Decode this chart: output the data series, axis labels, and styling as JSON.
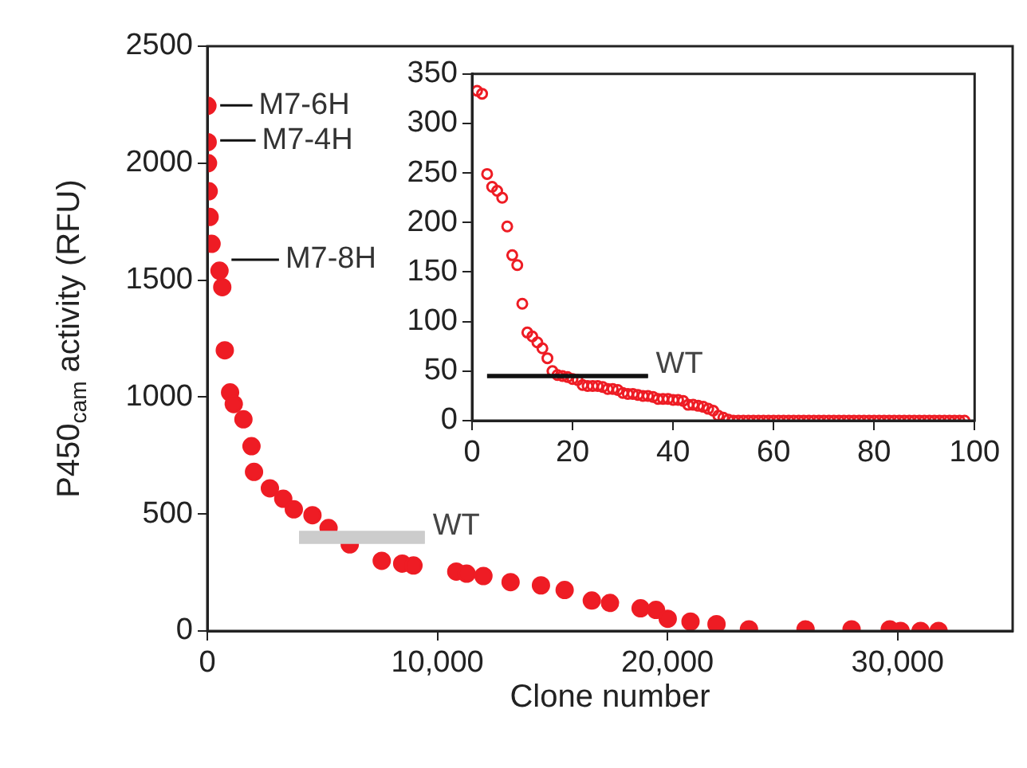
{
  "chart_data": [
    {
      "type": "scatter",
      "xlabel": "Clone number",
      "ylabel": "P450$_{cam}$ activity (RFU)",
      "marker": "circle",
      "x": [
        5,
        15,
        30,
        60,
        100,
        185,
        530,
        650,
        760,
        990,
        1150,
        1570,
        1920,
        2030,
        2720,
        3300,
        3760,
        4570,
        5270,
        6190,
        7580,
        8470,
        8960,
        10820,
        11270,
        12000,
        13180,
        14500,
        15530,
        16710,
        17500,
        18830,
        19500,
        20010,
        21000,
        22130,
        23540,
        26000,
        28000,
        29660,
        30130,
        31000,
        31780
      ],
      "series": [
        {
          "color": "#ee1c24",
          "values": [
            2245,
            2090,
            2000,
            1880,
            1770,
            1655,
            1540,
            1470,
            1200,
            1020,
            970,
            905,
            790,
            680,
            610,
            565,
            520,
            495,
            440,
            370,
            300,
            288,
            280,
            254,
            245,
            235,
            209,
            195,
            175,
            130,
            120,
            97,
            90,
            52,
            40,
            29,
            7,
            7,
            7,
            7,
            0,
            0,
            0
          ]
        }
      ],
      "xlim": [
        0,
        35000
      ],
      "xticks": [
        0,
        {
          "value": 10000,
          "label": "10,000"
        },
        {
          "value": 20000,
          "label": "20,000"
        },
        {
          "value": 30000,
          "label": "30,000"
        }
      ],
      "ylim": [
        0,
        2500
      ],
      "yticks": [
        0,
        500,
        1000,
        1500,
        2000,
        2500
      ],
      "annotations": [
        "M7-6H",
        "M7-4H",
        "M7-8H"
      ],
      "ref_lines": [
        {
          "axis": "y",
          "value": 400,
          "label": "WT",
          "color": "#cccccc"
        }
      ]
    },
    {
      "type": "scatter",
      "marker": "circle",
      "x": [
        1,
        2,
        3,
        4,
        5,
        6,
        7,
        8,
        9,
        10,
        11,
        12,
        13,
        14,
        15,
        16,
        17,
        18,
        19,
        20,
        21,
        22,
        23,
        24,
        25,
        26,
        27,
        28,
        29,
        30,
        31,
        32,
        33,
        34,
        35,
        36,
        37,
        38,
        39,
        40,
        41,
        42,
        43,
        44,
        45,
        46,
        47,
        48,
        49,
        50,
        51,
        52,
        53,
        54,
        55,
        56,
        57,
        58,
        59,
        60,
        61,
        62,
        63,
        64,
        65,
        66,
        67,
        68,
        69,
        70,
        71,
        72,
        73,
        74,
        75,
        76,
        77,
        78,
        79,
        80,
        81,
        82,
        83,
        84,
        85,
        86,
        87,
        88,
        89,
        90,
        91,
        92,
        93,
        94,
        95,
        96,
        97,
        98
      ],
      "series": [
        {
          "color": "#ee1c24",
          "values": [
            333,
            330,
            249,
            236,
            232,
            225,
            196,
            167,
            157,
            118,
            89,
            85,
            79,
            73,
            63,
            50,
            46,
            45,
            44,
            42,
            41,
            36,
            35,
            35,
            35,
            34,
            32,
            32,
            31,
            28,
            27,
            27,
            26,
            25,
            25,
            24,
            22,
            22,
            22,
            21,
            21,
            20,
            16,
            16,
            15,
            14,
            12,
            10,
            5,
            3,
            1,
            0,
            0,
            0,
            0,
            0,
            0,
            0,
            0,
            0,
            0,
            0,
            0,
            0,
            0,
            0,
            0,
            0,
            0,
            0,
            0,
            0,
            0,
            0,
            0,
            0,
            0,
            0,
            0,
            0,
            0,
            0,
            0,
            0,
            0,
            0,
            0,
            0,
            0,
            0,
            0,
            0,
            0,
            0,
            0,
            0,
            0,
            0
          ]
        }
      ],
      "xlim": [
        0,
        100
      ],
      "xticks": [
        0,
        20,
        40,
        60,
        80,
        100
      ],
      "ylim": [
        0,
        350
      ],
      "yticks": [
        0,
        50,
        100,
        150,
        200,
        250,
        300,
        350
      ],
      "ref_lines": [
        {
          "axis": "y",
          "value": 45,
          "label": "WT",
          "color": "#111111"
        }
      ]
    }
  ]
}
